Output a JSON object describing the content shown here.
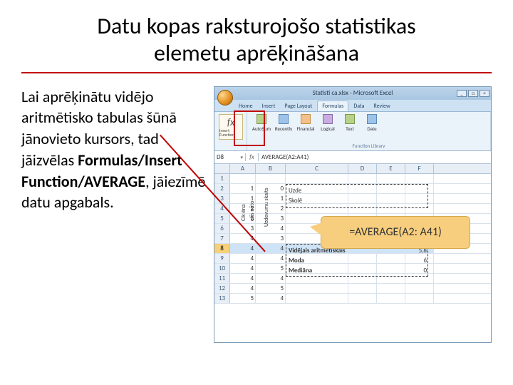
{
  "title": "Datu kopas raksturojošo statistikas elemetu aprēķināšana",
  "body": {
    "p1": "Lai aprēķinātu vidējo aritmētisko tabulas šūnā jānovieto kursors, tad jāizvēlas ",
    "bold": "Formulas/Insert Function/AVERAGE",
    "p2": ", jāiezīmē datu apgabals."
  },
  "excel": {
    "windowTitle": "Statisti ca.xlsx - Microsoft Excel",
    "tabs": [
      "Home",
      "Insert",
      "Page Layout",
      "Formulas",
      "Data",
      "Review"
    ],
    "activeTab": "Formulas",
    "ribbon": {
      "insertFn": {
        "fx": "fx",
        "label": "Insert Function"
      },
      "groupLib": "Function Library",
      "btns": [
        "AutoSum",
        "Recently",
        "Financial",
        "Logical",
        "Text",
        "Date"
      ]
    },
    "nameBox": "D8",
    "formulaBar": "AVERAGE(A2:A41)",
    "cols": [
      "A",
      "B",
      "C",
      "D",
      "E",
      "F"
    ],
    "vlabels": {
      "a": "Cik ēna",
      "b": "etīs nēto",
      "c": "Uzdevumu skaits"
    },
    "rows": [
      {
        "n": "1",
        "a": "",
        "b": ""
      },
      {
        "n": "2",
        "a": "1",
        "b": "0"
      },
      {
        "n": "3",
        "a": "1",
        "b": "1"
      },
      {
        "n": "4",
        "a": "2",
        "b": "2"
      },
      {
        "n": "5",
        "a": "3",
        "b": "3"
      },
      {
        "n": "6",
        "a": "3",
        "b": "4"
      },
      {
        "n": "7",
        "a": "4",
        "b": "3"
      },
      {
        "n": "8",
        "a": "4",
        "b": "4",
        "sel": true
      },
      {
        "n": "9",
        "a": "4",
        "b": "4"
      },
      {
        "n": "10",
        "a": "4",
        "b": "5"
      },
      {
        "n": "11",
        "a": "4",
        "b": "4"
      },
      {
        "n": "12",
        "a": "4",
        "b": "5"
      },
      {
        "n": "13",
        "a": "5",
        "b": "4"
      }
    ],
    "statLabels": {
      "c1": "Uzde",
      "c2": "Skolē",
      "avg": "Vidējais aritmētiskais",
      "moda": "Moda",
      "med": "Mediāna"
    },
    "statVals": {
      "avg": "5,8",
      "moda": "6",
      "med": "0"
    },
    "callout": "=AVERAGE(A2: A41)"
  }
}
